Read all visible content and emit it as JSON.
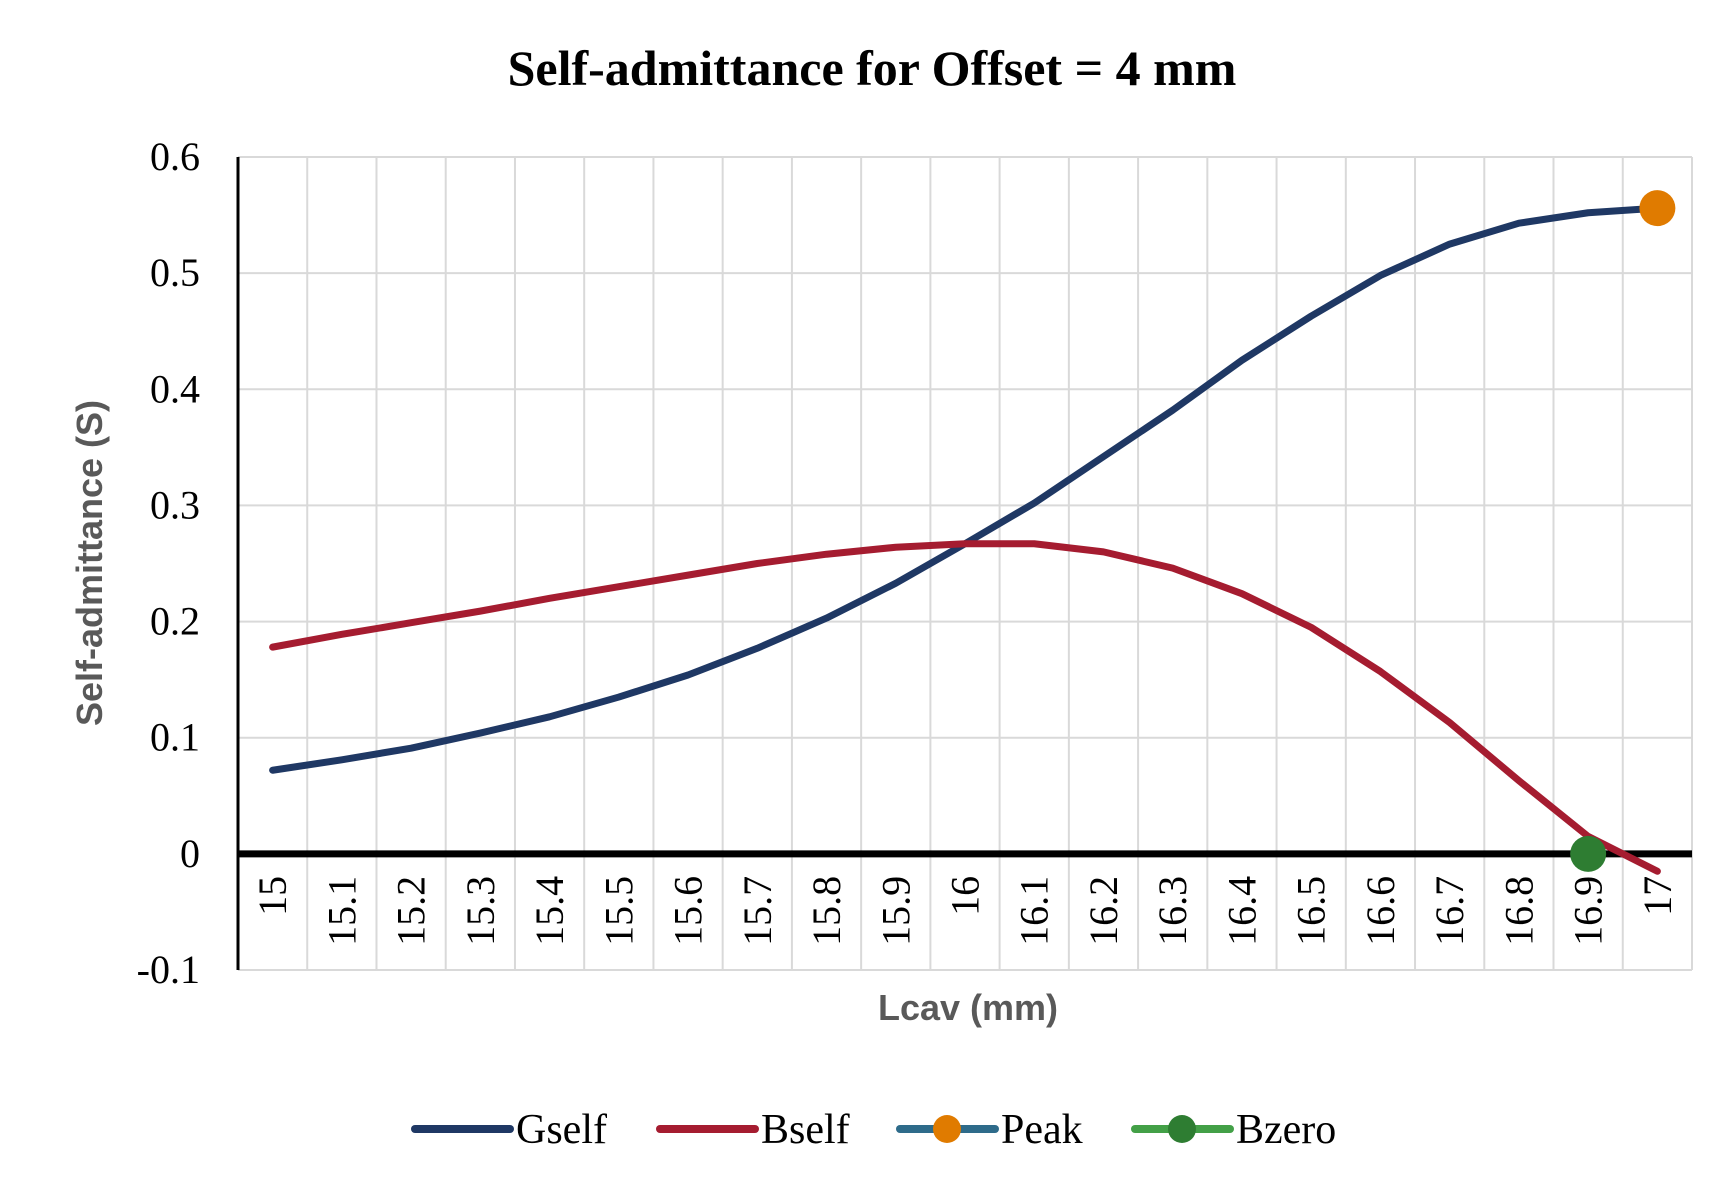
{
  "chart_data": {
    "type": "line",
    "title": "Self-admittance for Offset = 4 mm",
    "xlabel": "Lcav (mm)",
    "ylabel": "Self-admittance (S)",
    "categories": [
      "15",
      "15.1",
      "15.2",
      "15.3",
      "15.4",
      "15.5",
      "15.6",
      "15.7",
      "15.8",
      "15.9",
      "16",
      "16.1",
      "16.2",
      "16.3",
      "16.4",
      "16.5",
      "16.6",
      "16.7",
      "16.8",
      "16.9",
      "17"
    ],
    "ylim": [
      -0.1,
      0.6
    ],
    "yticks": [
      "-0.1",
      "0",
      "0.1",
      "0.2",
      "0.3",
      "0.4",
      "0.5",
      "0.6"
    ],
    "grid": true,
    "legend_position": "bottom",
    "series": [
      {
        "name": "Gself",
        "kind": "line",
        "color": "#1f3864",
        "values": [
          0.072,
          0.081,
          0.091,
          0.104,
          0.118,
          0.135,
          0.154,
          0.177,
          0.203,
          0.233,
          0.267,
          0.302,
          0.342,
          0.382,
          0.425,
          0.463,
          0.498,
          0.525,
          0.543,
          0.552,
          0.556
        ]
      },
      {
        "name": "Bself",
        "kind": "line",
        "color": "#a51c30",
        "values": [
          0.178,
          0.189,
          0.199,
          0.209,
          0.22,
          0.23,
          0.24,
          0.25,
          0.258,
          0.264,
          0.267,
          0.267,
          0.26,
          0.246,
          0.224,
          0.195,
          0.157,
          0.113,
          0.063,
          0.015,
          -0.015
        ]
      },
      {
        "name": "Peak",
        "kind": "marker",
        "color": "#e07b00",
        "x": "17",
        "value": 0.556
      },
      {
        "name": "Bzero",
        "kind": "marker",
        "color": "#2e7d32",
        "x": "16.9",
        "value": 0.0
      }
    ]
  }
}
